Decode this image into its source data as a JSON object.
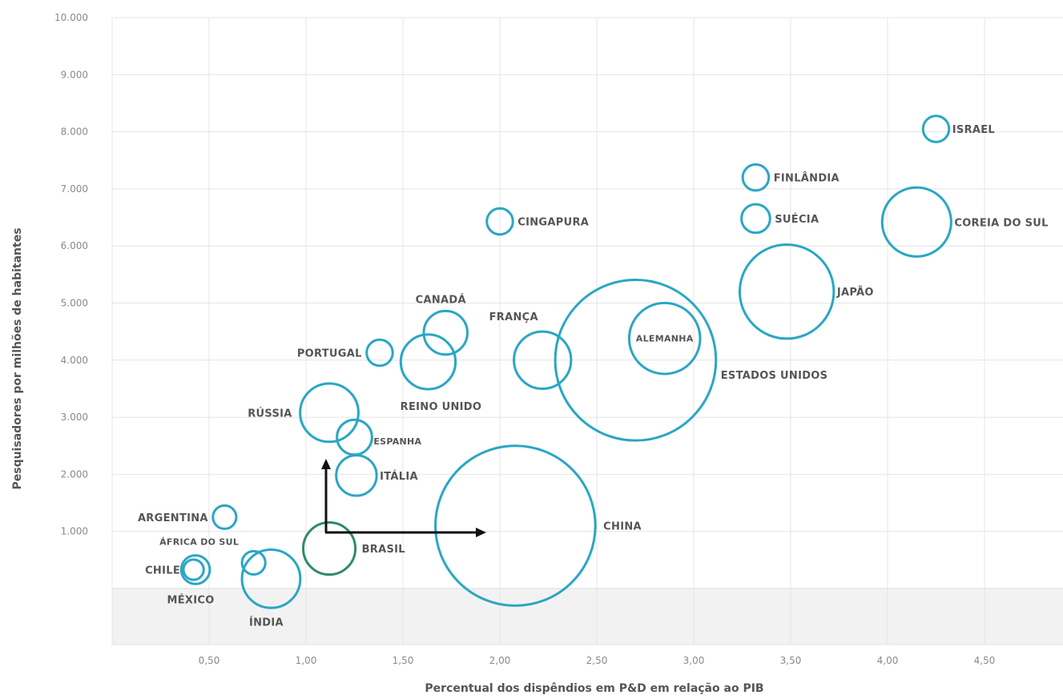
{
  "chart_data": {
    "type": "scatter",
    "title": "",
    "xlabel": "Percentual  dos dispêndios em P&D em relação  ao PIB",
    "ylabel": "Pesquisadores por milhões de habitantes",
    "xlim": [
      0,
      5.0
    ],
    "ylim": [
      -1000,
      10000
    ],
    "x_ticks": [
      0.5,
      1.0,
      1.5,
      2.0,
      2.5,
      3.0,
      3.5,
      4.0,
      4.5
    ],
    "x_tick_labels": [
      "0,50",
      "1,00",
      "1,50",
      "2,00",
      "2,50",
      "3,00",
      "3,50",
      "4,00",
      "4,50"
    ],
    "y_ticks": [
      1000,
      2000,
      3000,
      4000,
      5000,
      6000,
      7000,
      8000,
      9000,
      10000
    ],
    "y_tick_labels": [
      "1.000",
      "2.000",
      "3.000",
      "4.000",
      "5.000",
      "6.000",
      "7.000",
      "8.000",
      "9.000",
      "10.000"
    ],
    "grid": true,
    "bubble_color": "#2aa6c4",
    "highlight_color": "#2e8b6a",
    "band_color": "#f2f2f2",
    "points": [
      {
        "label": "ISRAEL",
        "x": 4.25,
        "y": 8050,
        "size": 0.05
      },
      {
        "label": "FINLÂNDIA",
        "x": 3.32,
        "y": 7200,
        "size": 0.05
      },
      {
        "label": "SUÉCIA",
        "x": 3.32,
        "y": 6480,
        "size": 0.06
      },
      {
        "label": "COREIA DO SUL",
        "x": 4.15,
        "y": 6420,
        "size": 0.35
      },
      {
        "label": "CINGAPURA",
        "x": 2.0,
        "y": 6430,
        "size": 0.05
      },
      {
        "label": "JAPÃO",
        "x": 3.48,
        "y": 5200,
        "size": 0.65
      },
      {
        "label": "CANADÁ",
        "x": 1.72,
        "y": 4480,
        "size": 0.14
      },
      {
        "label": "FRANÇA",
        "x": 2.22,
        "y": 4000,
        "size": 0.24
      },
      {
        "label": "ALEMANHA",
        "x": 2.85,
        "y": 4380,
        "size": 0.37
      },
      {
        "label": "ESTADOS UNIDOS",
        "x": 2.7,
        "y": 4000,
        "size": 1.9
      },
      {
        "label": "PORTUGAL",
        "x": 1.38,
        "y": 4130,
        "size": 0.05
      },
      {
        "label": "REINO UNIDO",
        "x": 1.63,
        "y": 3970,
        "size": 0.22
      },
      {
        "label": "RÚSSIA",
        "x": 1.12,
        "y": 3080,
        "size": 0.25
      },
      {
        "label": "ESPANHA",
        "x": 1.25,
        "y": 2650,
        "size": 0.09
      },
      {
        "label": "ITÁLIA",
        "x": 1.26,
        "y": 1980,
        "size": 0.12
      },
      {
        "label": "CHINA",
        "x": 2.08,
        "y": 1100,
        "size": 1.88
      },
      {
        "label": "ARGENTINA",
        "x": 0.58,
        "y": 1250,
        "size": 0.04
      },
      {
        "label": "BRASIL",
        "x": 1.12,
        "y": 700,
        "size": 0.2,
        "highlight": true
      },
      {
        "label": "ÁFRICA DO SUL",
        "x": 0.73,
        "y": 450,
        "size": 0.04
      },
      {
        "label": "CHILE",
        "x": 0.42,
        "y": 330,
        "size": 0.03
      },
      {
        "label": "MÉXICO",
        "x": 0.43,
        "y": 330,
        "size": 0.06
      },
      {
        "label": "ÍNDIA",
        "x": 0.82,
        "y": 170,
        "size": 0.25
      }
    ]
  }
}
